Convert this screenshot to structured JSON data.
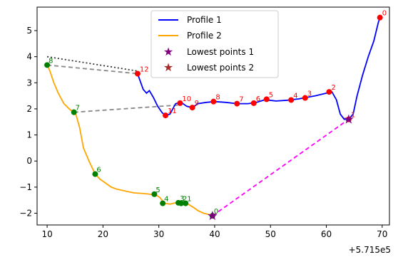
{
  "chart_data": {
    "type": "line",
    "title": "",
    "xlabel": "",
    "ylabel": "",
    "x_offset_label": "+5.715e5",
    "xlim": [
      8.2,
      71.3
    ],
    "ylim": [
      -2.45,
      5.9
    ],
    "x_ticks": [
      10,
      20,
      30,
      40,
      50,
      60,
      70
    ],
    "x_tick_labels": [
      "10",
      "20",
      "30",
      "40",
      "50",
      "60",
      "70"
    ],
    "y_ticks": [
      -2,
      -1,
      0,
      1,
      2,
      3,
      4,
      5
    ],
    "y_tick_labels": [
      "−2",
      "−1",
      "0",
      "1",
      "2",
      "3",
      "4",
      "5"
    ],
    "grid": false,
    "legend_position": "upper center",
    "legend": [
      {
        "label": "Profile 1",
        "kind": "line",
        "color": "#0000ff"
      },
      {
        "label": "Profile 2",
        "kind": "line",
        "color": "#ffa500"
      },
      {
        "label": "Lowest points 1",
        "kind": "star",
        "color": "#800080"
      },
      {
        "label": "Lowest points 2",
        "kind": "star",
        "color": "#a52a2a"
      }
    ],
    "series": [
      {
        "name": "Profile 1",
        "color": "#0000ff",
        "x": [
          26.2,
          26.6,
          27.2,
          27.8,
          28.3,
          29.0,
          29.8,
          30.6,
          31.2,
          32.0,
          33.0,
          34.0,
          35.0,
          36.0,
          37.0,
          38.5,
          40.0,
          42.0,
          44.0,
          46.0,
          47.5,
          49.0,
          51.0,
          53.0,
          55.0,
          56.0,
          58.0,
          60.0,
          61.0,
          61.8,
          62.5,
          63.2,
          64.0,
          64.8,
          65.5,
          66.5,
          67.5,
          68.5,
          69.3,
          69.6
        ],
        "y": [
          3.35,
          3.1,
          2.75,
          2.6,
          2.7,
          2.45,
          2.1,
          1.85,
          1.75,
          1.8,
          2.2,
          2.25,
          2.1,
          2.05,
          2.2,
          2.25,
          2.28,
          2.25,
          2.2,
          2.2,
          2.25,
          2.35,
          2.3,
          2.33,
          2.38,
          2.42,
          2.5,
          2.6,
          2.65,
          2.35,
          1.8,
          1.6,
          1.6,
          1.8,
          2.5,
          3.3,
          4.0,
          4.6,
          5.3,
          5.5
        ]
      },
      {
        "name": "Profile 2",
        "color": "#ffa500",
        "x": [
          10.0,
          10.5,
          11.2,
          12.0,
          13.0,
          14.2,
          15.0,
          15.8,
          16.5,
          17.5,
          18.6,
          19.5,
          20.5,
          21.5,
          22.5,
          24.0,
          25.5,
          27.5,
          29.5,
          30.2,
          31.0,
          32.0,
          33.0,
          34.0,
          35.0,
          36.0,
          37.0,
          38.0,
          39.0,
          39.6
        ],
        "y": [
          3.68,
          3.45,
          3.0,
          2.6,
          2.2,
          1.95,
          1.9,
          1.3,
          0.5,
          0.0,
          -0.5,
          -0.7,
          -0.85,
          -1.0,
          -1.08,
          -1.15,
          -1.22,
          -1.25,
          -1.3,
          -1.4,
          -1.62,
          -1.65,
          -1.6,
          -1.6,
          -1.62,
          -1.75,
          -1.9,
          -2.0,
          -2.05,
          -2.1
        ]
      }
    ],
    "points_profile1": [
      {
        "label": "12",
        "x": 26.2,
        "y": 3.35
      },
      {
        "label": "11",
        "x": 31.2,
        "y": 1.75
      },
      {
        "label": "10",
        "x": 33.8,
        "y": 2.22
      },
      {
        "label": "9",
        "x": 36.0,
        "y": 2.05
      },
      {
        "label": "8",
        "x": 39.8,
        "y": 2.28
      },
      {
        "label": "7",
        "x": 44.0,
        "y": 2.2
      },
      {
        "label": "6",
        "x": 47.0,
        "y": 2.22
      },
      {
        "label": "5",
        "x": 49.3,
        "y": 2.37
      },
      {
        "label": "4",
        "x": 53.7,
        "y": 2.34
      },
      {
        "label": "3",
        "x": 56.2,
        "y": 2.42
      },
      {
        "label": "2",
        "x": 60.5,
        "y": 2.65
      },
      {
        "label": "1",
        "x": 64.0,
        "y": 1.6
      },
      {
        "label": "0",
        "x": 69.6,
        "y": 5.5
      }
    ],
    "points_profile2": [
      {
        "label": "8",
        "x": 10.0,
        "y": 3.68
      },
      {
        "label": "7",
        "x": 14.8,
        "y": 1.87
      },
      {
        "label": "6",
        "x": 18.6,
        "y": -0.5
      },
      {
        "label": "5",
        "x": 29.2,
        "y": -1.27
      },
      {
        "label": "4",
        "x": 30.7,
        "y": -1.62
      },
      {
        "label": "3",
        "x": 33.5,
        "y": -1.6
      },
      {
        "label": "2",
        "x": 34.0,
        "y": -1.62
      },
      {
        "label": "1",
        "x": 34.8,
        "y": -1.62
      },
      {
        "label": "0",
        "x": 39.6,
        "y": -2.1
      }
    ],
    "lowest_points_1": [
      {
        "x": 64.0,
        "y": 1.6
      }
    ],
    "lowest_points_2": [
      {
        "x": 39.6,
        "y": -2.1
      }
    ],
    "connectors": [
      {
        "style": "dotted",
        "color": "#333333",
        "from": [
          10.0,
          4.0
        ],
        "to": [
          26.2,
          3.45
        ]
      },
      {
        "style": "dashed",
        "color": "#888888",
        "from": [
          10.0,
          3.68
        ],
        "to": [
          26.2,
          3.35
        ]
      },
      {
        "style": "dashed",
        "color": "#888888",
        "from": [
          14.8,
          1.87
        ],
        "to": [
          33.8,
          2.15
        ]
      },
      {
        "style": "dashed",
        "color": "#ff00ff",
        "from": [
          39.6,
          -2.1
        ],
        "to": [
          64.0,
          1.6
        ]
      }
    ]
  }
}
